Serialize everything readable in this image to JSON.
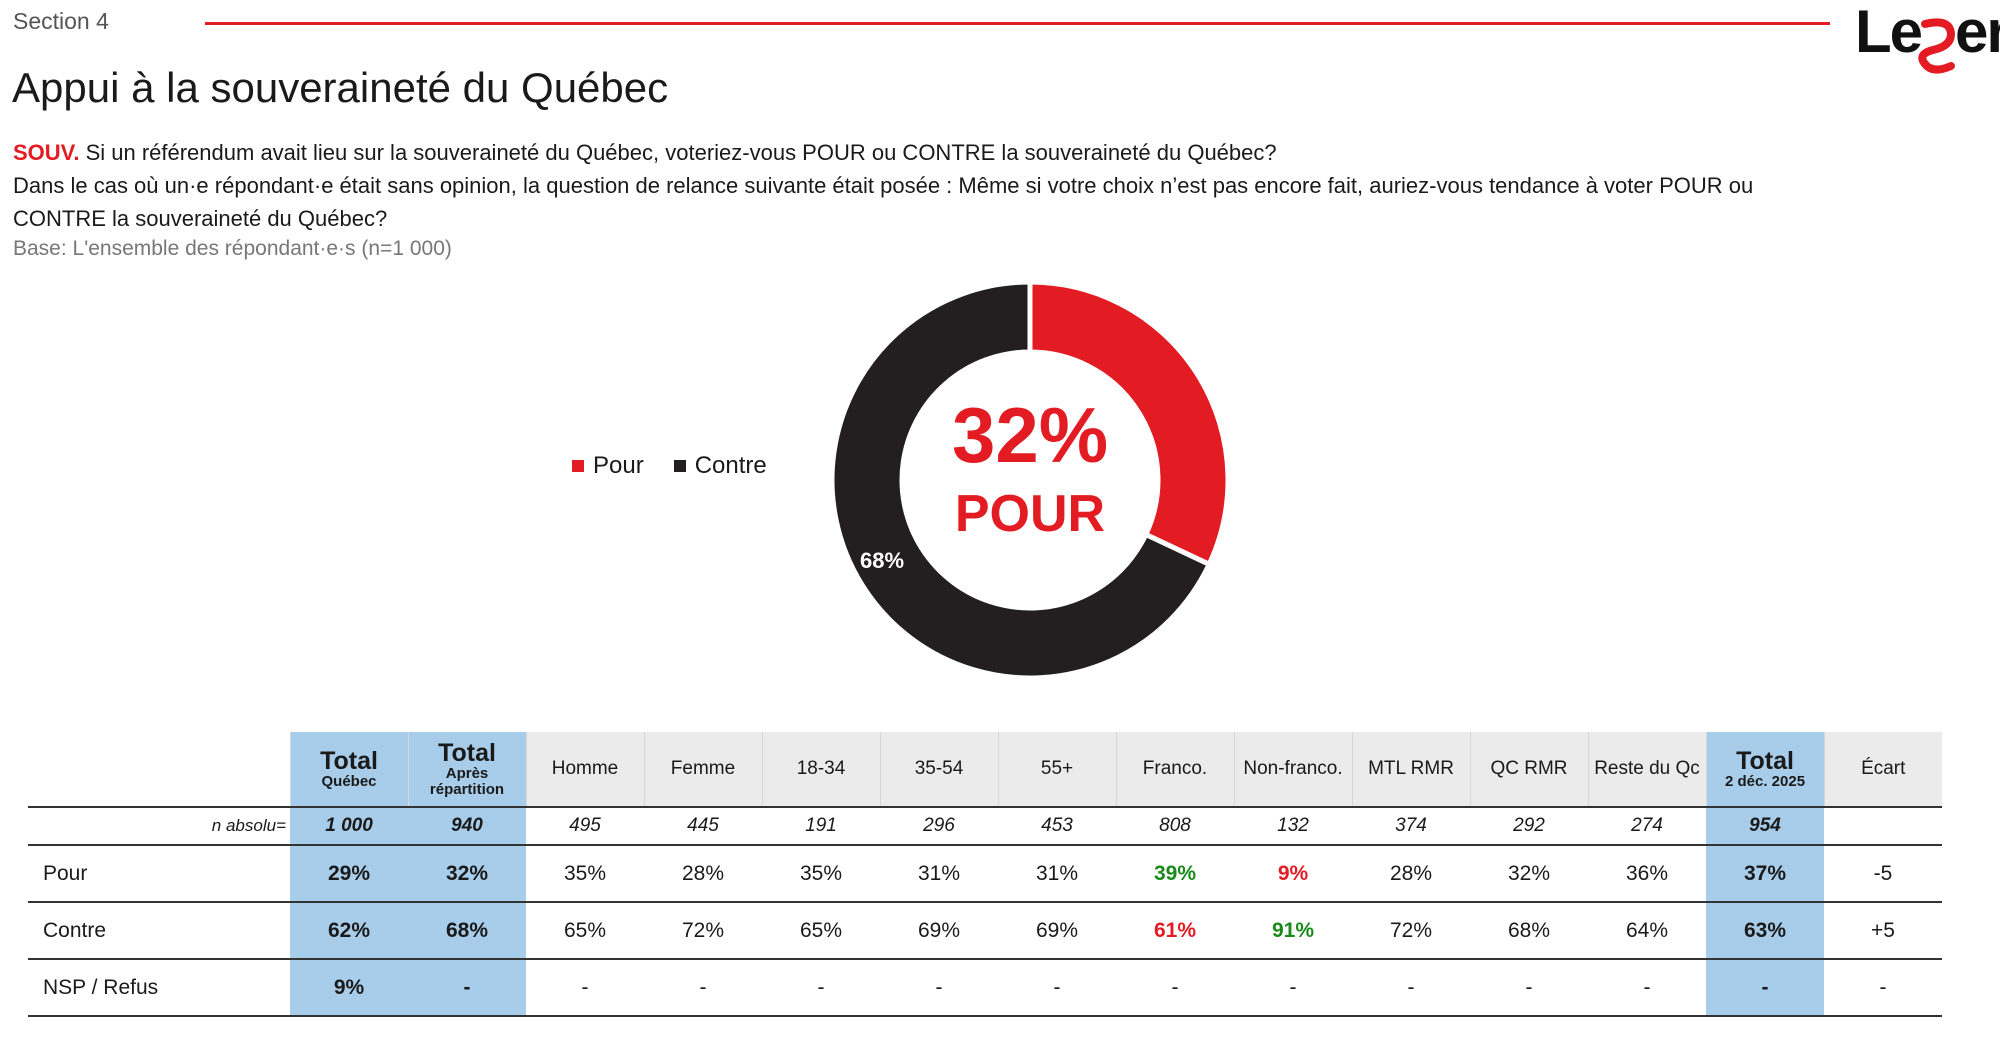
{
  "header": {
    "section": "Section 4",
    "logo_text": "Leger",
    "title": "Appui à la souveraineté du Québec"
  },
  "question": {
    "code": "SOUV.",
    "text1": " Si un référendum avait lieu sur la souveraineté du Québec, voteriez-vous POUR ou CONTRE la souveraineté du Québec?",
    "text2": "Dans le cas où un·e répondant·e était sans opinion, la question de relance suivante était posée : Même si votre choix n’est pas encore fait, auriez-vous tendance à voter POUR ou CONTRE la souveraineté du Québec?",
    "base": "Base: L'ensemble des répondant·e·s (n=1 000)"
  },
  "colors": {
    "pour": "#e31b23",
    "contre": "#231f20",
    "highlight": "#a8cdea"
  },
  "chart_data": {
    "type": "pie",
    "donut": true,
    "categories": [
      "Pour",
      "Contre"
    ],
    "values": [
      32,
      68
    ],
    "data_labels": [
      "",
      "68%"
    ],
    "center_value": "32%",
    "center_label": "POUR",
    "legend": [
      "Pour",
      "Contre"
    ],
    "legend_position": "left"
  },
  "table": {
    "header": {
      "total_quebec_big": "Total",
      "total_quebec_small": "Québec",
      "total_apres_big": "Total",
      "total_apres_small": "Après répartition",
      "homme": "Homme",
      "femme": "Femme",
      "a1834": "18-34",
      "a3554": "35-54",
      "a55": "55+",
      "franco": "Franco.",
      "nonfranco": "Non-franco.",
      "mtl": "MTL RMR",
      "qc": "QC RMR",
      "reste": "Reste du Qc",
      "total_dec_big": "Total",
      "total_dec_small": "2 déc. 2025",
      "ecart": "Écart"
    },
    "n_absolu": {
      "label": "n absolu=",
      "values": [
        "1 000",
        "940",
        "495",
        "445",
        "191",
        "296",
        "453",
        "808",
        "132",
        "374",
        "292",
        "274",
        "954",
        ""
      ]
    },
    "rows": [
      {
        "label": "Pour",
        "values": [
          "29%",
          "32%",
          "35%",
          "28%",
          "35%",
          "31%",
          "31%",
          "39%",
          "9%",
          "28%",
          "32%",
          "36%",
          "37%",
          "-5"
        ]
      },
      {
        "label": "Contre",
        "values": [
          "62%",
          "68%",
          "65%",
          "72%",
          "65%",
          "69%",
          "69%",
          "61%",
          "91%",
          "72%",
          "68%",
          "64%",
          "63%",
          "+5"
        ]
      },
      {
        "label": "NSP / Refus",
        "values": [
          "9%",
          "-",
          "-",
          "-",
          "-",
          "-",
          "-",
          "-",
          "-",
          "-",
          "-",
          "-",
          "-",
          "-"
        ]
      }
    ]
  }
}
